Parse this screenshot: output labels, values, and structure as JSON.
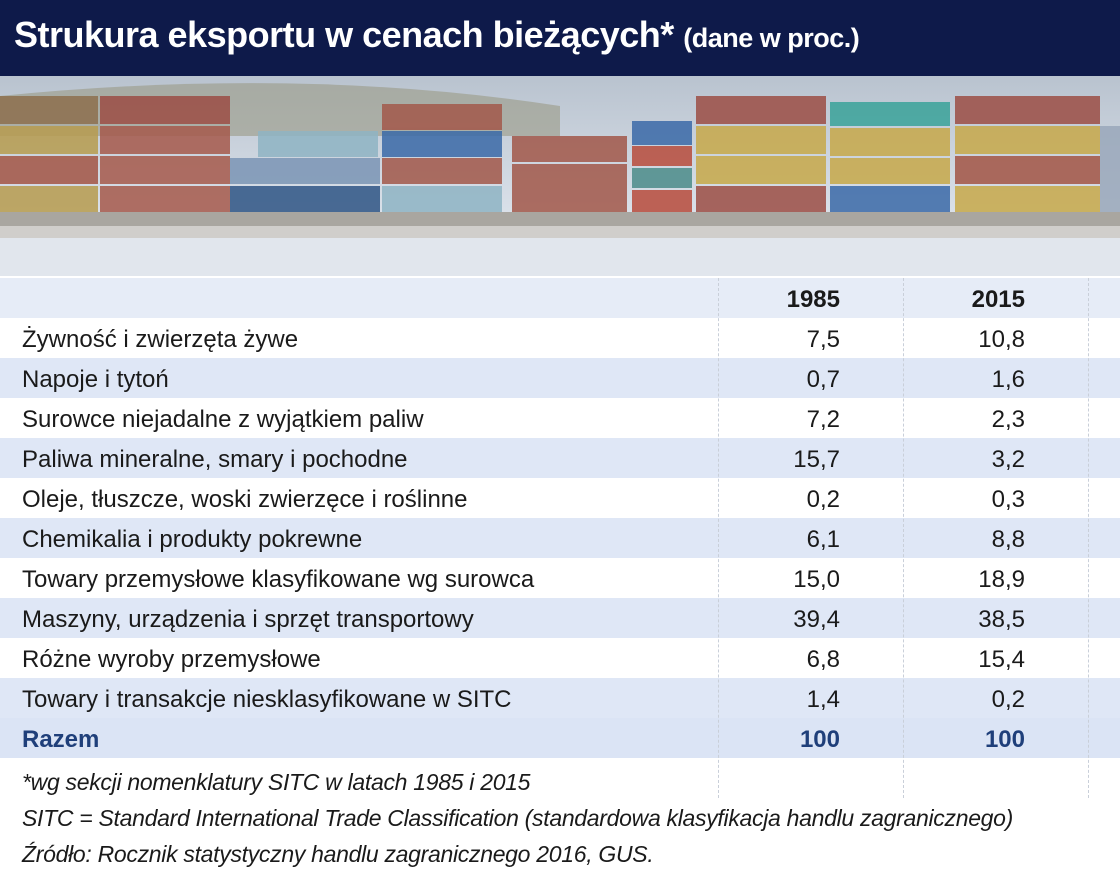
{
  "header": {
    "title": "Strukura eksportu w cenach bieżących*",
    "subtitle": "(dane w proc.)"
  },
  "table": {
    "columns": [
      "1985",
      "2015"
    ],
    "rows": [
      [
        "Żywność i zwierzęta żywe",
        "7,5",
        "10,8"
      ],
      [
        "Napoje i tytoń",
        "0,7",
        "1,6"
      ],
      [
        "Surowce niejadalne z wyjątkiem paliw",
        "7,2",
        "2,3"
      ],
      [
        "Paliwa mineralne, smary i pochodne",
        "15,7",
        "3,2"
      ],
      [
        "Oleje, tłuszcze, woski zwierzęce i roślinne",
        "0,2",
        "0,3"
      ],
      [
        "Chemikalia i produkty pokrewne",
        "6,1",
        "8,8"
      ],
      [
        "Towary przemysłowe klasyfikowane wg surowca",
        "15,0",
        "18,9"
      ],
      [
        "Maszyny, urządzenia i sprzęt transportowy",
        "39,4",
        "38,5"
      ],
      [
        "Różne wyroby przemysłowe",
        "6,8",
        "15,4"
      ],
      [
        "Towary i transakcje niesklasyfikowane w SITC",
        "1,4",
        "0,2"
      ]
    ],
    "total": [
      "Razem",
      "100",
      "100"
    ]
  },
  "notes": [
    "*wg sekcji nomenklatury SITC w latach 1985 i 2015",
    "SITC = Standard International Trade Classification (standardowa klasyfikacja handlu zagranicznego)",
    "Źródło: Rocznik statystyczny handlu zagranicznego 2016, GUS."
  ]
}
